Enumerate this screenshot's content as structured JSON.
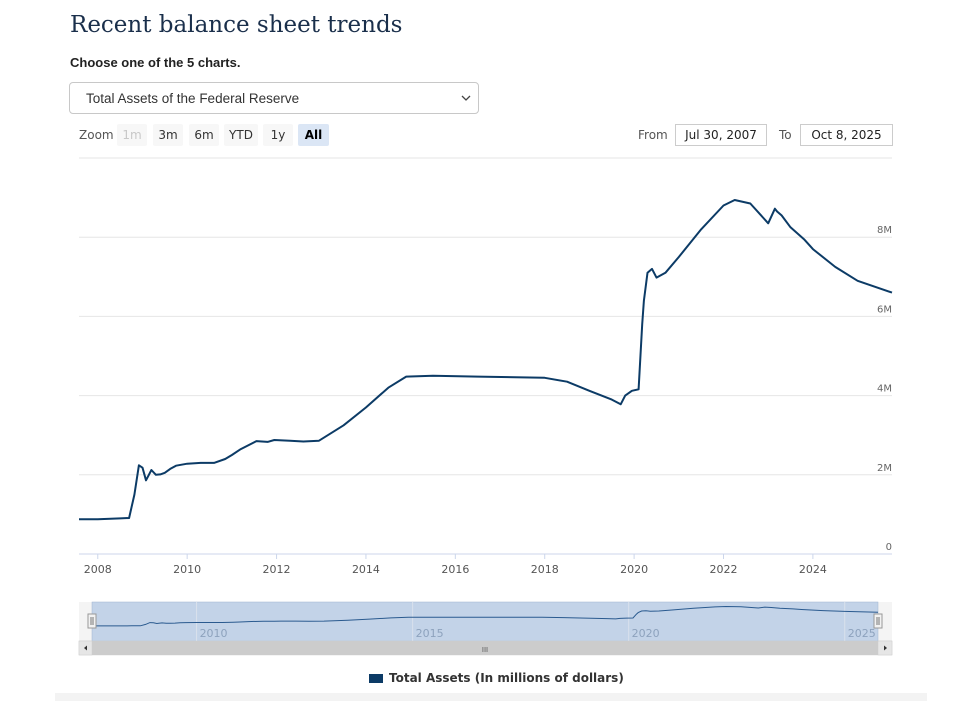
{
  "title": "Recent balance sheet trends",
  "subtitle": "Choose one of the 5 charts.",
  "select": {
    "value": "Total Assets of the Federal Reserve"
  },
  "zoom": {
    "label": "Zoom",
    "buttons": [
      {
        "label": "1m",
        "state": "disabled"
      },
      {
        "label": "3m",
        "state": "normal"
      },
      {
        "label": "6m",
        "state": "normal"
      },
      {
        "label": "YTD",
        "state": "normal"
      },
      {
        "label": "1y",
        "state": "normal"
      },
      {
        "label": "All",
        "state": "active"
      }
    ]
  },
  "range": {
    "from_label": "From",
    "from_value": "Jul 30, 2007",
    "to_label": "To",
    "to_value": "Oct 8, 2025"
  },
  "colors": {
    "series": "#0c3b66",
    "navigator_fill": "#c3d3e8",
    "navigator_line": "#2a5a8f"
  },
  "chart_data": {
    "type": "line",
    "title": "",
    "xlabel": "",
    "ylabel": "",
    "x_ticks": [
      "2008",
      "2010",
      "2012",
      "2014",
      "2016",
      "2018",
      "2020",
      "2022",
      "2024"
    ],
    "y_ticks": [
      "0",
      "2M",
      "4M",
      "6M",
      "8M"
    ],
    "xlim": [
      2007.58,
      2025.77
    ],
    "ylim": [
      0,
      10000000
    ],
    "grid": true,
    "legend": "bottom",
    "series": [
      {
        "name": "Total Assets (In millions of dollars)",
        "x": [
          2007.58,
          2008.0,
          2008.5,
          2008.7,
          2008.82,
          2008.92,
          2009.0,
          2009.08,
          2009.2,
          2009.3,
          2009.4,
          2009.5,
          2009.62,
          2009.75,
          2010.0,
          2010.3,
          2010.6,
          2010.85,
          2011.0,
          2011.2,
          2011.55,
          2011.8,
          2011.95,
          2012.3,
          2012.6,
          2012.95,
          2013.5,
          2014.0,
          2014.5,
          2014.9,
          2015.5,
          2016.5,
          2017.5,
          2018.0,
          2018.5,
          2019.0,
          2019.5,
          2019.7,
          2019.8,
          2019.95,
          2020.1,
          2020.18,
          2020.22,
          2020.3,
          2020.4,
          2020.5,
          2020.7,
          2021.0,
          2021.5,
          2022.0,
          2022.25,
          2022.6,
          2023.0,
          2023.15,
          2023.2,
          2023.3,
          2023.5,
          2023.8,
          2024.0,
          2024.5,
          2025.0,
          2025.77
        ],
        "y": [
          880000,
          880000,
          900000,
          910000,
          1500000,
          2240000,
          2180000,
          1860000,
          2120000,
          2000000,
          2010000,
          2050000,
          2150000,
          2230000,
          2280000,
          2300000,
          2300000,
          2400000,
          2500000,
          2650000,
          2850000,
          2830000,
          2880000,
          2860000,
          2840000,
          2860000,
          3250000,
          3700000,
          4200000,
          4480000,
          4500000,
          4480000,
          4460000,
          4450000,
          4350000,
          4120000,
          3900000,
          3780000,
          4000000,
          4120000,
          4160000,
          5800000,
          6400000,
          7100000,
          7200000,
          6980000,
          7100000,
          7500000,
          8200000,
          8800000,
          8940000,
          8850000,
          8350000,
          8720000,
          8650000,
          8550000,
          8250000,
          7950000,
          7700000,
          7250000,
          6900000,
          6600000
        ]
      }
    ],
    "navigator": {
      "x_ticks": [
        "2010",
        "2015",
        "2020",
        "2025"
      ],
      "scroll_handle": "III"
    }
  }
}
